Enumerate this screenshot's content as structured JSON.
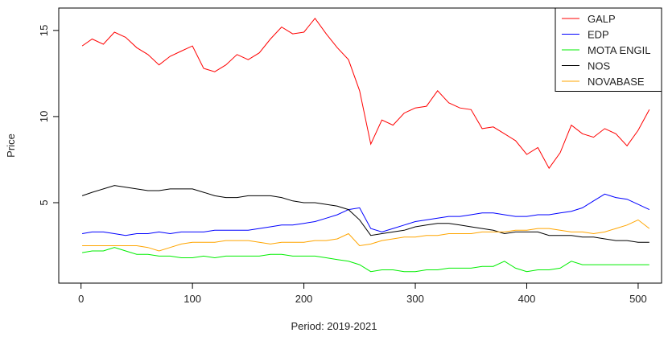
{
  "chart_data": {
    "type": "line",
    "x_label": "Period: 2019-2021",
    "y_label": "Price",
    "x": [
      1,
      10,
      20,
      30,
      40,
      50,
      60,
      70,
      80,
      90,
      100,
      110,
      120,
      130,
      140,
      150,
      160,
      170,
      180,
      190,
      200,
      210,
      220,
      230,
      240,
      250,
      260,
      270,
      280,
      290,
      300,
      310,
      320,
      330,
      340,
      350,
      360,
      370,
      380,
      390,
      400,
      410,
      420,
      430,
      440,
      450,
      460,
      470,
      480,
      490,
      500,
      510
    ],
    "series": [
      {
        "name": "GALP",
        "color": "#ff0000",
        "values": [
          14.1,
          14.5,
          14.2,
          14.9,
          14.6,
          14.0,
          13.6,
          13.0,
          13.5,
          13.8,
          14.1,
          12.8,
          12.6,
          13.0,
          13.6,
          13.3,
          13.7,
          14.5,
          15.2,
          14.8,
          14.9,
          15.7,
          14.8,
          14.0,
          13.3,
          11.5,
          8.4,
          9.8,
          9.5,
          10.2,
          10.5,
          10.6,
          11.5,
          10.8,
          10.5,
          10.4,
          9.3,
          9.4,
          9.0,
          8.6,
          7.8,
          8.2,
          7.0,
          7.9,
          9.5,
          9.0,
          8.8,
          9.3,
          9.0,
          8.3,
          9.2,
          10.4
        ]
      },
      {
        "name": "EDP",
        "color": "#0000ff",
        "values": [
          3.2,
          3.3,
          3.3,
          3.2,
          3.1,
          3.2,
          3.2,
          3.3,
          3.2,
          3.3,
          3.3,
          3.3,
          3.4,
          3.4,
          3.4,
          3.4,
          3.5,
          3.6,
          3.7,
          3.7,
          3.8,
          3.9,
          4.1,
          4.3,
          4.6,
          4.7,
          3.5,
          3.3,
          3.5,
          3.7,
          3.9,
          4.0,
          4.1,
          4.2,
          4.2,
          4.3,
          4.4,
          4.4,
          4.3,
          4.2,
          4.2,
          4.3,
          4.3,
          4.4,
          4.5,
          4.7,
          5.1,
          5.5,
          5.3,
          5.2,
          4.9,
          4.6
        ]
      },
      {
        "name": "MOTA ENGIL",
        "color": "#00ee00",
        "values": [
          2.1,
          2.2,
          2.2,
          2.4,
          2.2,
          2.0,
          2.0,
          1.9,
          1.9,
          1.8,
          1.8,
          1.9,
          1.8,
          1.9,
          1.9,
          1.9,
          1.9,
          2.0,
          2.0,
          1.9,
          1.9,
          1.9,
          1.8,
          1.7,
          1.6,
          1.4,
          1.0,
          1.1,
          1.1,
          1.0,
          1.0,
          1.1,
          1.1,
          1.2,
          1.2,
          1.2,
          1.3,
          1.3,
          1.6,
          1.2,
          1.0,
          1.1,
          1.1,
          1.2,
          1.6,
          1.4,
          1.4,
          1.4,
          1.4,
          1.4,
          1.4,
          1.4
        ]
      },
      {
        "name": "NOS",
        "color": "#000000",
        "values": [
          5.4,
          5.6,
          5.8,
          6.0,
          5.9,
          5.8,
          5.7,
          5.7,
          5.8,
          5.8,
          5.8,
          5.6,
          5.4,
          5.3,
          5.3,
          5.4,
          5.4,
          5.4,
          5.3,
          5.1,
          5.0,
          5.0,
          4.9,
          4.8,
          4.6,
          4.0,
          3.1,
          3.2,
          3.3,
          3.4,
          3.6,
          3.7,
          3.8,
          3.8,
          3.7,
          3.6,
          3.5,
          3.4,
          3.2,
          3.3,
          3.3,
          3.3,
          3.1,
          3.1,
          3.1,
          3.0,
          3.0,
          2.9,
          2.8,
          2.8,
          2.7,
          2.7
        ]
      },
      {
        "name": "NOVABASE",
        "color": "#ffa500",
        "values": [
          2.5,
          2.5,
          2.5,
          2.5,
          2.5,
          2.5,
          2.4,
          2.2,
          2.4,
          2.6,
          2.7,
          2.7,
          2.7,
          2.8,
          2.8,
          2.8,
          2.7,
          2.6,
          2.7,
          2.7,
          2.7,
          2.8,
          2.8,
          2.9,
          3.2,
          2.5,
          2.6,
          2.8,
          2.9,
          3.0,
          3.0,
          3.1,
          3.1,
          3.2,
          3.2,
          3.2,
          3.3,
          3.3,
          3.3,
          3.4,
          3.4,
          3.5,
          3.5,
          3.4,
          3.3,
          3.3,
          3.2,
          3.3,
          3.5,
          3.7,
          4.0,
          3.5
        ]
      }
    ],
    "xlim": [
      -20,
      521
    ],
    "ylim": [
      0.33,
      16.3
    ],
    "xticks": [
      0,
      100,
      200,
      300,
      400,
      500
    ],
    "yticks": [
      5,
      10,
      15
    ],
    "legend": "top-right"
  }
}
